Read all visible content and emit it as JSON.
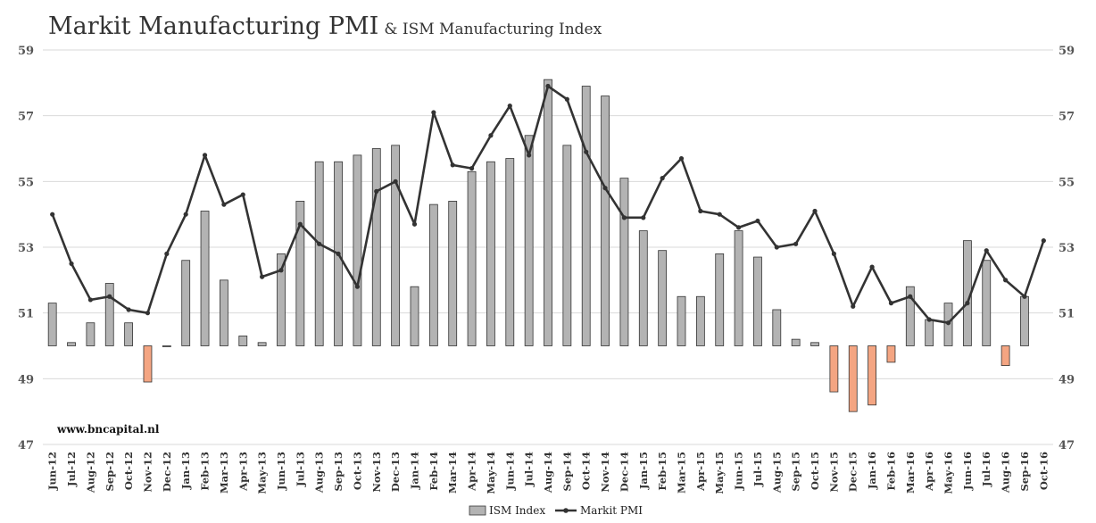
{
  "header": {
    "title": "Markit Manufacturing PMI",
    "subtitle": "& ISM Manufacturing Index"
  },
  "watermark": "www.bncapital.nl",
  "colors": {
    "ism_bar": "#b3b3b3",
    "ism_bar_below": "#f4a582",
    "bar_stroke": "#333333",
    "pmi_line": "#333333",
    "grid": "#d9d9d9"
  },
  "chart_data": {
    "type": "bar",
    "categories": [
      "Jun-12",
      "Jul-12",
      "Aug-12",
      "Sep-12",
      "Oct-12",
      "Nov-12",
      "Dec-12",
      "Jan-13",
      "Feb-13",
      "Mar-13",
      "Apr-13",
      "May-13",
      "Jun-13",
      "Jul-13",
      "Aug-13",
      "Sep-13",
      "Oct-13",
      "Nov-13",
      "Dec-13",
      "Jan-14",
      "Feb-14",
      "Mar-14",
      "Apr-14",
      "May-14",
      "Jun-14",
      "Jul-14",
      "Aug-14",
      "Sep-14",
      "Oct-14",
      "Nov-14",
      "Dec-14",
      "Jan-15",
      "Feb-15",
      "Mar-15",
      "Apr-15",
      "May-15",
      "Jun-15",
      "Jul-15",
      "Aug-15",
      "Sep-15",
      "Oct-15",
      "Nov-15",
      "Dec-15",
      "Jan-16",
      "Feb-16",
      "Mar-16",
      "Apr-16",
      "May-16",
      "Jun-16",
      "Jul-16",
      "Aug-16",
      "Sep-16",
      "Oct-16"
    ],
    "baseline": 50,
    "series": [
      {
        "name": "ISM Index",
        "kind": "bar",
        "values": [
          51.3,
          50.1,
          50.7,
          51.9,
          50.7,
          48.9,
          50.0,
          52.6,
          54.1,
          52.0,
          50.3,
          50.1,
          52.8,
          54.4,
          55.6,
          55.6,
          55.8,
          56.0,
          56.1,
          51.8,
          54.3,
          54.4,
          55.3,
          55.6,
          55.7,
          56.4,
          58.1,
          56.1,
          57.9,
          57.6,
          55.1,
          53.5,
          52.9,
          51.5,
          51.5,
          52.8,
          53.5,
          52.7,
          51.1,
          50.2,
          50.1,
          48.6,
          48.0,
          48.2,
          49.5,
          51.8,
          50.8,
          51.3,
          53.2,
          52.6,
          49.4,
          51.5,
          null
        ]
      },
      {
        "name": "Markit PMI",
        "kind": "line",
        "values": [
          54.0,
          52.5,
          51.4,
          51.5,
          51.1,
          51.0,
          52.8,
          54.0,
          55.8,
          54.3,
          54.6,
          52.1,
          52.3,
          53.7,
          53.1,
          52.8,
          51.8,
          54.7,
          55.0,
          53.7,
          57.1,
          55.5,
          55.4,
          56.4,
          57.3,
          55.8,
          57.9,
          57.5,
          55.9,
          54.8,
          53.9,
          53.9,
          55.1,
          55.7,
          54.1,
          54.0,
          53.6,
          53.8,
          53.0,
          53.1,
          54.1,
          52.8,
          51.2,
          52.4,
          51.3,
          51.5,
          50.8,
          50.7,
          51.3,
          52.9,
          52.0,
          51.5,
          53.2
        ]
      }
    ],
    "ylim": [
      47,
      59
    ],
    "yticks": [
      47,
      49,
      51,
      53,
      55,
      57,
      59
    ],
    "secondary_yticks": [
      47,
      49,
      51,
      53,
      55,
      57,
      59
    ],
    "grid": true,
    "legend_position": "bottom-center",
    "xlabel": "",
    "ylabel": ""
  }
}
